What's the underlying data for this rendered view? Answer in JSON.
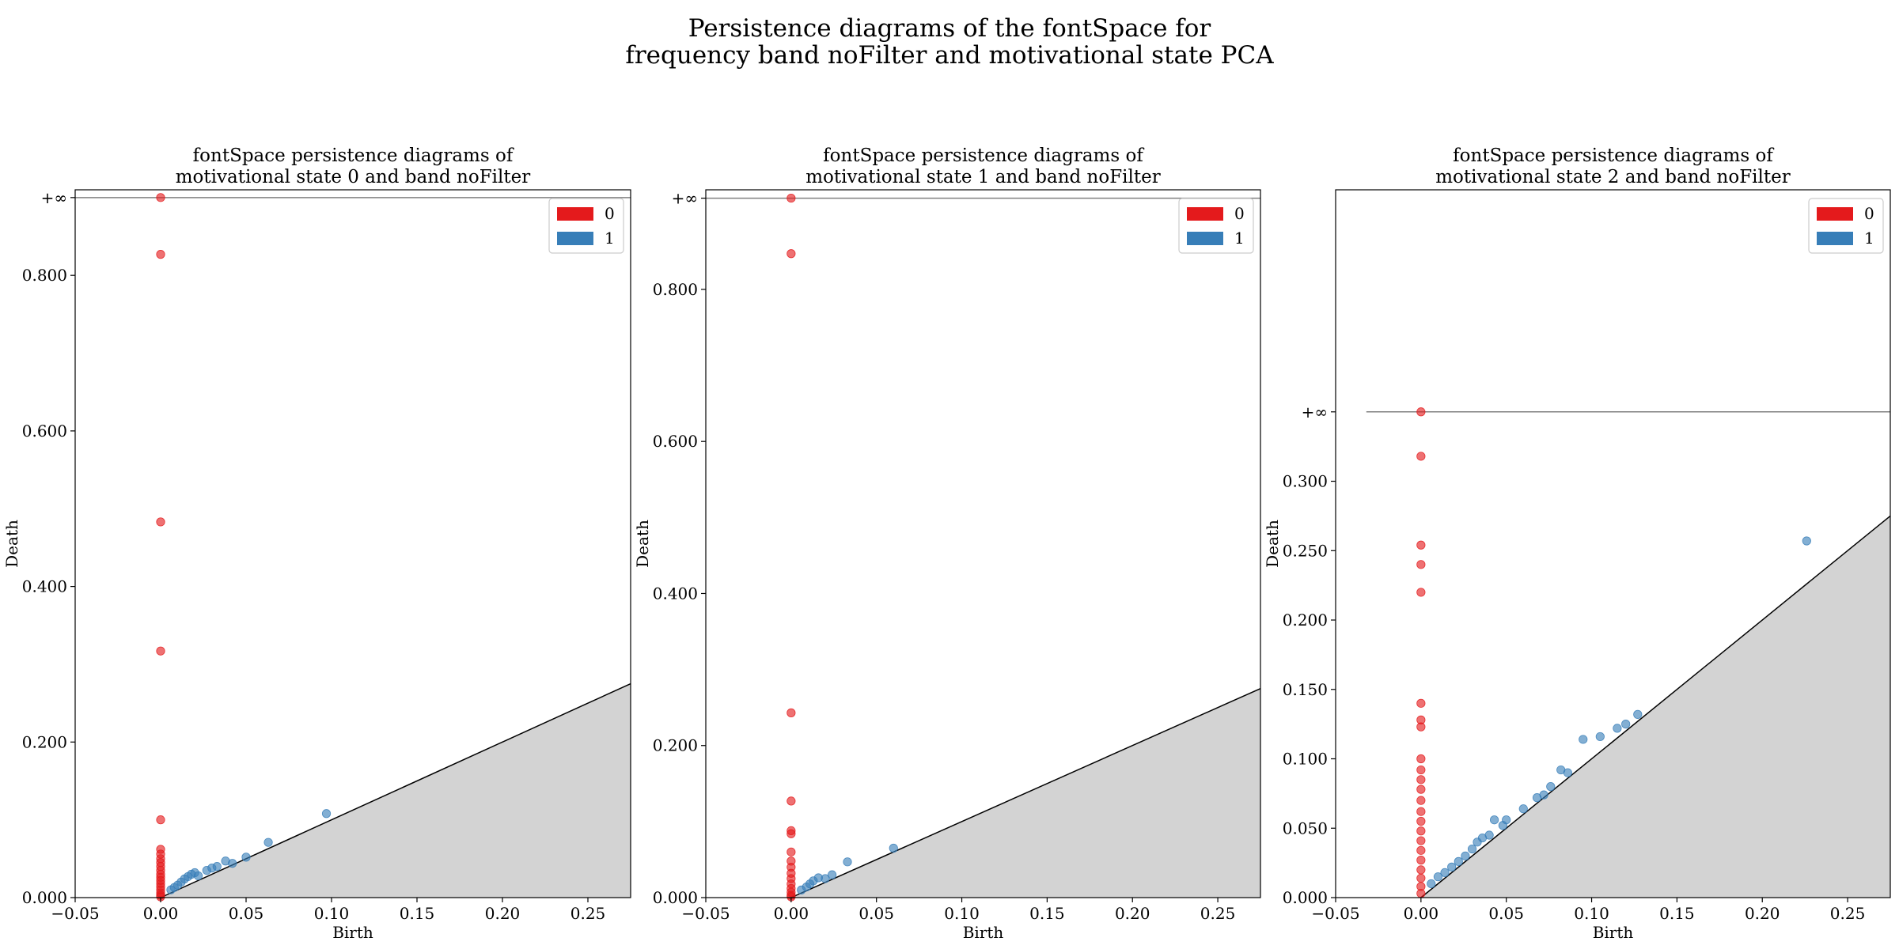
{
  "figure": {
    "title_line1": "Persistence diagrams of the fontSpace for",
    "title_line2": "frequency band noFilter and motivational state PCA"
  },
  "colors": {
    "dim0": "#e41a1c",
    "dim1": "#377eb8",
    "diagonal_fill": "#d3d3d3",
    "infinity_line": "#808080"
  },
  "chart_data": [
    {
      "type": "scatter",
      "title_line1": "fontSpace persistence diagrams of",
      "title_line2": "motivational state 0 and band noFilter",
      "xlabel": "Birth",
      "ylabel": "Death",
      "xlim": [
        -0.05,
        0.275
      ],
      "ylim": [
        0,
        0.91
      ],
      "infinity_value": 0.9,
      "infinity_label": "+∞",
      "xticks": [
        {
          "value": -0.05,
          "label": "−0.05"
        },
        {
          "value": 0,
          "label": "0.00"
        },
        {
          "value": 0.05,
          "label": "0.05"
        },
        {
          "value": 0.1,
          "label": "0.10"
        },
        {
          "value": 0.15,
          "label": "0.15"
        },
        {
          "value": 0.2,
          "label": "0.20"
        },
        {
          "value": 0.25,
          "label": "0.25"
        }
      ],
      "yticks": [
        {
          "value": 0,
          "label": "0.000"
        },
        {
          "value": 0.2,
          "label": "0.200"
        },
        {
          "value": 0.4,
          "label": "0.400"
        },
        {
          "value": 0.6,
          "label": "0.600"
        },
        {
          "value": 0.8,
          "label": "0.800"
        }
      ],
      "legend": {
        "position": "upper right",
        "entries": [
          "0",
          "1"
        ]
      },
      "series": [
        {
          "name": "0",
          "points": [
            [
              0,
              0.9
            ],
            [
              0,
              0.827
            ],
            [
              0,
              0.483
            ],
            [
              0,
              0.317
            ],
            [
              0,
              0.1
            ],
            [
              0,
              0.062
            ],
            [
              0,
              0.056
            ],
            [
              0,
              0.05
            ],
            [
              0,
              0.045
            ],
            [
              0,
              0.04
            ],
            [
              0,
              0.035
            ],
            [
              0,
              0.03
            ],
            [
              0,
              0.026
            ],
            [
              0,
              0.022
            ],
            [
              0,
              0.018
            ],
            [
              0,
              0.014
            ],
            [
              0,
              0.01
            ],
            [
              0,
              0.006
            ],
            [
              0,
              0.003
            ],
            [
              0,
              0.001
            ]
          ]
        },
        {
          "name": "1",
          "points": [
            [
              0.006,
              0.01
            ],
            [
              0.008,
              0.013
            ],
            [
              0.01,
              0.016
            ],
            [
              0.012,
              0.02
            ],
            [
              0.014,
              0.024
            ],
            [
              0.016,
              0.027
            ],
            [
              0.018,
              0.03
            ],
            [
              0.02,
              0.032
            ],
            [
              0.022,
              0.028
            ],
            [
              0.027,
              0.035
            ],
            [
              0.03,
              0.038
            ],
            [
              0.033,
              0.04
            ],
            [
              0.038,
              0.047
            ],
            [
              0.042,
              0.044
            ],
            [
              0.05,
              0.052
            ],
            [
              0.063,
              0.071
            ],
            [
              0.097,
              0.108
            ]
          ]
        }
      ]
    },
    {
      "type": "scatter",
      "title_line1": "fontSpace persistence diagrams of",
      "title_line2": "motivational state 1 and band noFilter",
      "xlabel": "Birth",
      "ylabel": "Death",
      "xlim": [
        -0.05,
        0.275
      ],
      "ylim": [
        0,
        0.931
      ],
      "infinity_value": 0.92,
      "infinity_label": "+∞",
      "xticks": [
        {
          "value": -0.05,
          "label": "−0.05"
        },
        {
          "value": 0,
          "label": "0.00"
        },
        {
          "value": 0.05,
          "label": "0.05"
        },
        {
          "value": 0.1,
          "label": "0.10"
        },
        {
          "value": 0.15,
          "label": "0.15"
        },
        {
          "value": 0.2,
          "label": "0.20"
        },
        {
          "value": 0.25,
          "label": "0.25"
        }
      ],
      "yticks": [
        {
          "value": 0,
          "label": "0.000"
        },
        {
          "value": 0.2,
          "label": "0.200"
        },
        {
          "value": 0.4,
          "label": "0.400"
        },
        {
          "value": 0.6,
          "label": "0.600"
        },
        {
          "value": 0.8,
          "label": "0.800"
        }
      ],
      "legend": {
        "position": "upper right",
        "entries": [
          "0",
          "1"
        ]
      },
      "series": [
        {
          "name": "0",
          "points": [
            [
              0,
              0.92
            ],
            [
              0,
              0.847
            ],
            [
              0,
              0.243
            ],
            [
              0,
              0.127
            ],
            [
              0,
              0.088
            ],
            [
              0,
              0.084
            ],
            [
              0,
              0.06
            ],
            [
              0,
              0.048
            ],
            [
              0,
              0.04
            ],
            [
              0,
              0.032
            ],
            [
              0,
              0.025
            ],
            [
              0,
              0.018
            ],
            [
              0,
              0.012
            ],
            [
              0,
              0.007
            ],
            [
              0,
              0.003
            ],
            [
              0,
              0.001
            ]
          ]
        },
        {
          "name": "1",
          "points": [
            [
              0.006,
              0.01
            ],
            [
              0.009,
              0.014
            ],
            [
              0.011,
              0.018
            ],
            [
              0.013,
              0.022
            ],
            [
              0.016,
              0.026
            ],
            [
              0.02,
              0.025
            ],
            [
              0.024,
              0.03
            ],
            [
              0.033,
              0.047
            ],
            [
              0.06,
              0.065
            ]
          ]
        }
      ]
    },
    {
      "type": "scatter",
      "title_line1": "fontSpace persistence diagrams of",
      "title_line2": "motivational state 2 and band noFilter",
      "xlabel": "Birth",
      "ylabel": "Death",
      "xlim": [
        -0.05,
        0.275
      ],
      "ylim": [
        0,
        0.51
      ],
      "infinity_value": 0.35,
      "infinity_label": "+∞",
      "infinity_line_start": -0.032,
      "xticks": [
        {
          "value": -0.05,
          "label": "−0.05"
        },
        {
          "value": 0,
          "label": "0.00"
        },
        {
          "value": 0.05,
          "label": "0.05"
        },
        {
          "value": 0.1,
          "label": "0.10"
        },
        {
          "value": 0.15,
          "label": "0.15"
        },
        {
          "value": 0.2,
          "label": "0.20"
        },
        {
          "value": 0.25,
          "label": "0.25"
        }
      ],
      "yticks": [
        {
          "value": 0,
          "label": "0.000"
        },
        {
          "value": 0.05,
          "label": "0.050"
        },
        {
          "value": 0.1,
          "label": "0.100"
        },
        {
          "value": 0.15,
          "label": "0.150"
        },
        {
          "value": 0.2,
          "label": "0.200"
        },
        {
          "value": 0.25,
          "label": "0.250"
        },
        {
          "value": 0.3,
          "label": "0.300"
        }
      ],
      "legend": {
        "position": "upper right",
        "entries": [
          "0",
          "1"
        ]
      },
      "series": [
        {
          "name": "0",
          "points": [
            [
              0,
              0.35
            ],
            [
              0,
              0.318
            ],
            [
              0,
              0.254
            ],
            [
              0,
              0.24
            ],
            [
              0,
              0.22
            ],
            [
              0,
              0.14
            ],
            [
              0,
              0.128
            ],
            [
              0,
              0.123
            ],
            [
              0,
              0.1
            ],
            [
              0,
              0.092
            ],
            [
              0,
              0.085
            ],
            [
              0,
              0.078
            ],
            [
              0,
              0.07
            ],
            [
              0,
              0.062
            ],
            [
              0,
              0.055
            ],
            [
              0,
              0.048
            ],
            [
              0,
              0.041
            ],
            [
              0,
              0.034
            ],
            [
              0,
              0.027
            ],
            [
              0,
              0.02
            ],
            [
              0,
              0.014
            ],
            [
              0,
              0.008
            ],
            [
              0,
              0.003
            ]
          ]
        },
        {
          "name": "1",
          "points": [
            [
              0.006,
              0.01
            ],
            [
              0.01,
              0.015
            ],
            [
              0.014,
              0.018
            ],
            [
              0.018,
              0.022
            ],
            [
              0.022,
              0.026
            ],
            [
              0.026,
              0.03
            ],
            [
              0.03,
              0.035
            ],
            [
              0.033,
              0.04
            ],
            [
              0.036,
              0.043
            ],
            [
              0.04,
              0.045
            ],
            [
              0.043,
              0.056
            ],
            [
              0.048,
              0.052
            ],
            [
              0.05,
              0.056
            ],
            [
              0.06,
              0.064
            ],
            [
              0.068,
              0.072
            ],
            [
              0.072,
              0.074
            ],
            [
              0.076,
              0.08
            ],
            [
              0.082,
              0.092
            ],
            [
              0.086,
              0.09
            ],
            [
              0.095,
              0.114
            ],
            [
              0.105,
              0.116
            ],
            [
              0.115,
              0.122
            ],
            [
              0.12,
              0.125
            ],
            [
              0.127,
              0.132
            ],
            [
              0.226,
              0.257
            ]
          ]
        }
      ]
    }
  ]
}
